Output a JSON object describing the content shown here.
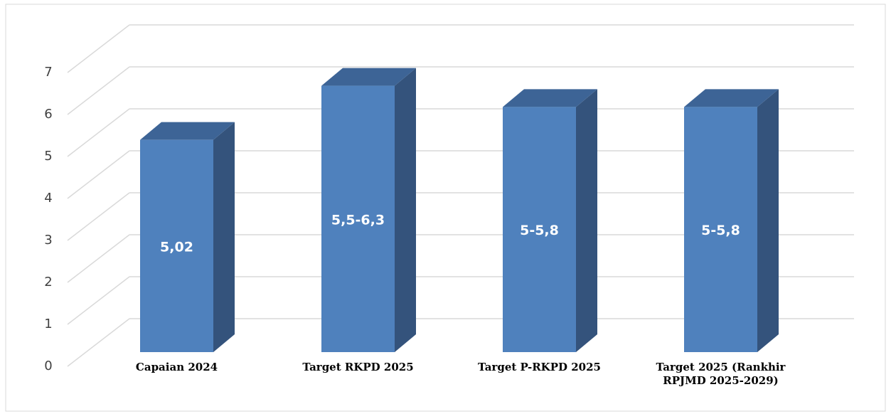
{
  "chart_data": {
    "type": "bar3d",
    "categories": [
      "Capaian 2024",
      "Target RKPD 2025",
      "Target P-RKPD 2025",
      "Target 2025 (Rankhir RPJMD 2025-2029)"
    ],
    "values": [
      5.02,
      6.3,
      5.8,
      5.8
    ],
    "value_labels": [
      "5,02",
      "5,5-6,3",
      "5-5,8",
      "5-5,8"
    ],
    "color": "#4f81bd",
    "ylim": [
      0,
      7
    ],
    "yticks": [
      0,
      1,
      2,
      3,
      4,
      5,
      6,
      7
    ],
    "grid": true
  }
}
